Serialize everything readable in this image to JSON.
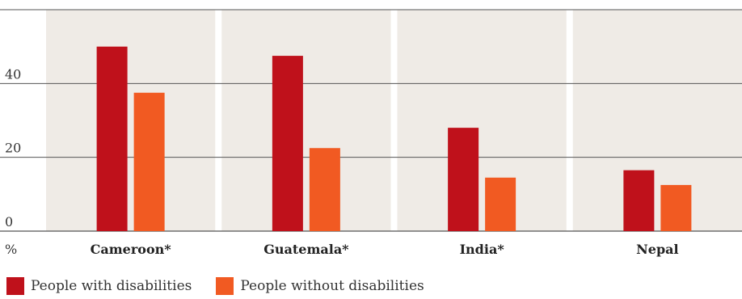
{
  "chart_data": {
    "type": "bar",
    "categories": [
      "Cameroon*",
      "Guatemala*",
      "India*",
      "Nepal"
    ],
    "series": [
      {
        "name": "People with disabilities",
        "color": "#bf111b",
        "values": [
          50,
          47.5,
          28,
          16.5
        ]
      },
      {
        "name": "People without disabilities",
        "color": "#f15a22",
        "values": [
          37.5,
          22.5,
          14.5,
          12.5
        ]
      }
    ],
    "y_ticks": [
      "0",
      "20",
      "40"
    ],
    "y_tick_values": [
      0,
      20,
      40
    ],
    "y_unit": "%",
    "ylim": [
      0,
      60
    ],
    "grid": true,
    "legend_position": "bottom-left",
    "panel_color": "#efebe6"
  }
}
